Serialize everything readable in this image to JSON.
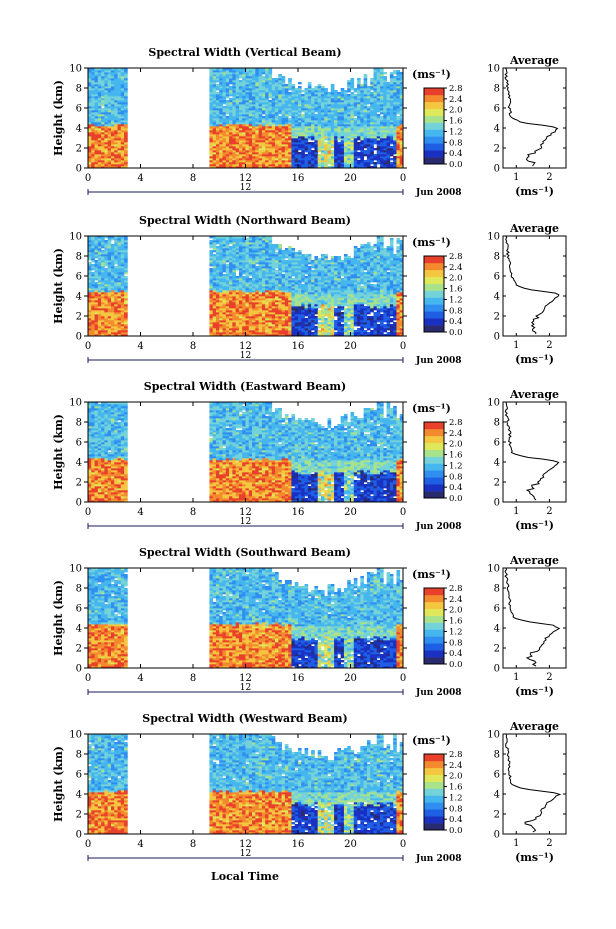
{
  "figure": {
    "x_axis_title": "Local Time",
    "colorbar_unit": "(ms⁻¹)",
    "profile_title": "Average",
    "profile_xlabel": "(ms⁻¹)",
    "y_axis_title": "Height (km)",
    "date_label": "Jun 2008",
    "day_label": "12"
  },
  "colormap": [
    "#2a2a6e",
    "#1a30c0",
    "#1e5fe6",
    "#2f8ef0",
    "#46b6ee",
    "#74d3d8",
    "#a8e38c",
    "#dfe85a",
    "#f5c640",
    "#f48a2e",
    "#e8402a"
  ],
  "chart_data": [
    {
      "type": "heatmap",
      "title": "Spectral Width (Vertical Beam)",
      "xlabel": "Local Time",
      "ylabel": "Height (km)",
      "xlim": [
        0,
        24
      ],
      "ylim": [
        0,
        10
      ],
      "x_ticks": [
        "0",
        "4",
        "8",
        "12",
        "16",
        "20",
        "0"
      ],
      "y_ticks": [
        "0",
        "2",
        "4",
        "6",
        "8",
        "10"
      ],
      "colorbar": {
        "label": "(ms⁻¹)",
        "range": [
          0.0,
          2.8
        ],
        "ticks": [
          "0.0",
          "0.4",
          "0.8",
          "1.2",
          "1.6",
          "2.0",
          "2.4",
          "2.8"
        ]
      },
      "data_gap": [
        3.0,
        9.3
      ],
      "boundary_layer_top_km": 4.3,
      "profile": {
        "title": "Average",
        "xlabel": "(ms⁻¹)",
        "xticks": [
          "1",
          "2"
        ],
        "xlim": [
          0.6,
          2.5
        ],
        "ylim": [
          0,
          10
        ],
        "heights": [
          0.5,
          1.0,
          1.5,
          2.0,
          2.5,
          3.0,
          3.5,
          3.8,
          4.0,
          4.2,
          4.5,
          5.0,
          6.0,
          7.0,
          8.0,
          9.0,
          10.0
        ],
        "values": [
          1.5,
          1.3,
          1.5,
          1.7,
          1.8,
          1.9,
          2.1,
          2.2,
          2.3,
          2.0,
          1.2,
          0.85,
          0.8,
          0.8,
          0.75,
          0.7,
          0.7
        ]
      }
    },
    {
      "type": "heatmap",
      "title": "Spectral Width (Northward Beam)",
      "xlabel": "Local Time",
      "ylabel": "Height (km)",
      "xlim": [
        0,
        24
      ],
      "ylim": [
        0,
        10
      ],
      "x_ticks": [
        "0",
        "4",
        "8",
        "12",
        "16",
        "20",
        "0"
      ],
      "y_ticks": [
        "0",
        "2",
        "4",
        "6",
        "8",
        "10"
      ],
      "colorbar": {
        "label": "(ms⁻¹)",
        "range": [
          0.0,
          2.8
        ],
        "ticks": [
          "0.0",
          "0.4",
          "0.8",
          "1.2",
          "1.6",
          "2.0",
          "2.4",
          "2.8"
        ]
      },
      "data_gap": [
        3.0,
        9.3
      ],
      "boundary_layer_top_km": 4.5,
      "profile": {
        "title": "Average",
        "xlabel": "(ms⁻¹)",
        "xticks": [
          "1",
          "2"
        ],
        "xlim": [
          0.6,
          2.5
        ],
        "ylim": [
          0,
          10
        ],
        "heights": [
          0.5,
          1.0,
          1.5,
          2.0,
          2.5,
          3.0,
          3.5,
          3.8,
          4.0,
          4.3,
          4.6,
          5.0,
          6.0,
          7.0,
          8.0,
          9.0,
          10.0
        ],
        "values": [
          1.6,
          1.4,
          1.5,
          1.7,
          1.8,
          1.9,
          2.1,
          2.2,
          2.3,
          2.2,
          1.5,
          1.0,
          0.85,
          0.8,
          0.75,
          0.75,
          0.7
        ]
      }
    },
    {
      "type": "heatmap",
      "title": "Spectral Width (Eastward Beam)",
      "xlabel": "Local Time",
      "ylabel": "Height (km)",
      "xlim": [
        0,
        24
      ],
      "ylim": [
        0,
        10
      ],
      "x_ticks": [
        "0",
        "4",
        "8",
        "12",
        "16",
        "20",
        "0"
      ],
      "y_ticks": [
        "0",
        "2",
        "4",
        "6",
        "8",
        "10"
      ],
      "colorbar": {
        "label": "(ms⁻¹)",
        "range": [
          0.0,
          2.8
        ],
        "ticks": [
          "0.0",
          "0.4",
          "0.8",
          "1.2",
          "1.6",
          "2.0",
          "2.4",
          "2.8"
        ]
      },
      "data_gap": [
        3.0,
        9.3
      ],
      "boundary_layer_top_km": 4.3,
      "profile": {
        "title": "Average",
        "xlabel": "(ms⁻¹)",
        "xticks": [
          "1",
          "2"
        ],
        "xlim": [
          0.6,
          2.5
        ],
        "ylim": [
          0,
          10
        ],
        "heights": [
          0.5,
          1.0,
          1.5,
          2.0,
          2.5,
          3.0,
          3.5,
          3.8,
          4.0,
          4.2,
          4.5,
          5.0,
          6.0,
          7.0,
          8.0,
          9.0,
          10.0
        ],
        "values": [
          1.6,
          1.3,
          1.5,
          1.7,
          1.8,
          1.9,
          2.1,
          2.2,
          2.3,
          2.0,
          1.2,
          0.85,
          0.8,
          0.8,
          0.75,
          0.7,
          0.7
        ]
      }
    },
    {
      "type": "heatmap",
      "title": "Spectral Width (Southward Beam)",
      "xlabel": "Local Time",
      "ylabel": "Height (km)",
      "xlim": [
        0,
        24
      ],
      "ylim": [
        0,
        10
      ],
      "x_ticks": [
        "0",
        "4",
        "8",
        "12",
        "16",
        "20",
        "0"
      ],
      "y_ticks": [
        "0",
        "2",
        "4",
        "6",
        "8",
        "10"
      ],
      "colorbar": {
        "label": "(ms⁻¹)",
        "range": [
          0.0,
          2.8
        ],
        "ticks": [
          "0.0",
          "0.4",
          "0.8",
          "1.2",
          "1.6",
          "2.0",
          "2.4",
          "2.8"
        ]
      },
      "data_gap": [
        3.0,
        9.3
      ],
      "boundary_layer_top_km": 4.4,
      "profile": {
        "title": "Average",
        "xlabel": "(ms⁻¹)",
        "xticks": [
          "1",
          "2"
        ],
        "xlim": [
          0.6,
          2.5
        ],
        "ylim": [
          0,
          10
        ],
        "heights": [
          0.5,
          1.0,
          1.5,
          2.0,
          2.5,
          3.0,
          3.5,
          3.8,
          4.0,
          4.3,
          4.6,
          5.0,
          6.0,
          7.0,
          8.0,
          9.0,
          10.0
        ],
        "values": [
          1.6,
          1.4,
          1.5,
          1.7,
          1.8,
          1.9,
          2.1,
          2.2,
          2.3,
          2.1,
          1.4,
          0.95,
          0.8,
          0.8,
          0.75,
          0.7,
          0.7
        ]
      }
    },
    {
      "type": "heatmap",
      "title": "Spectral Width (Westward Beam)",
      "xlabel": "Local Time",
      "ylabel": "Height (km)",
      "xlim": [
        0,
        24
      ],
      "ylim": [
        0,
        10
      ],
      "x_ticks": [
        "0",
        "4",
        "8",
        "12",
        "16",
        "20",
        "0"
      ],
      "y_ticks": [
        "0",
        "2",
        "4",
        "6",
        "8",
        "10"
      ],
      "colorbar": {
        "label": "(ms⁻¹)",
        "range": [
          0.0,
          2.8
        ],
        "ticks": [
          "0.0",
          "0.4",
          "0.8",
          "1.2",
          "1.6",
          "2.0",
          "2.4",
          "2.8"
        ]
      },
      "data_gap": [
        3.0,
        9.3
      ],
      "boundary_layer_top_km": 4.3,
      "profile": {
        "title": "Average",
        "xlabel": "(ms⁻¹)",
        "xticks": [
          "1",
          "2"
        ],
        "xlim": [
          0.6,
          2.5
        ],
        "ylim": [
          0,
          10
        ],
        "heights": [
          0.5,
          1.0,
          1.5,
          2.0,
          2.5,
          3.0,
          3.5,
          3.8,
          4.0,
          4.2,
          4.5,
          5.0,
          6.0,
          7.0,
          8.0,
          9.0,
          10.0
        ],
        "values": [
          1.5,
          1.3,
          1.5,
          1.7,
          1.8,
          1.9,
          2.1,
          2.2,
          2.3,
          2.0,
          1.2,
          0.85,
          0.8,
          0.8,
          0.75,
          0.7,
          0.7
        ]
      }
    }
  ]
}
